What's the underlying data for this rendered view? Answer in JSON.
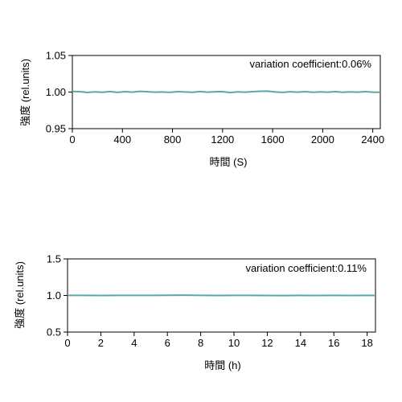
{
  "chart_data": [
    {
      "type": "line",
      "annotation": "variation coefficient:0.06%",
      "xlabel": "時間 (S)",
      "ylabel": "強度 (rel.units)",
      "xlim": [
        0,
        2460
      ],
      "ylim": [
        0.95,
        1.05
      ],
      "xticks": [
        0,
        400,
        800,
        1200,
        1600,
        2000,
        2400
      ],
      "yticks": [
        0.95,
        1.0,
        1.05
      ],
      "ytick_labels": [
        "0.95",
        "1.00",
        "1.05"
      ],
      "line_color": "#5aa8a6",
      "series": [
        {
          "x": [
            0,
            60,
            120,
            180,
            240,
            300,
            360,
            420,
            480,
            540,
            600,
            660,
            720,
            780,
            840,
            900,
            960,
            1020,
            1080,
            1140,
            1200,
            1260,
            1320,
            1380,
            1440,
            1500,
            1560,
            1620,
            1680,
            1740,
            1800,
            1860,
            1920,
            1980,
            2040,
            2100,
            2160,
            2220,
            2280,
            2340,
            2400,
            2460
          ],
          "values": [
            1.0008,
            1.0006,
            0.9995,
            1.0003,
            0.9997,
            1.0007,
            0.9996,
            1.0005,
            0.9998,
            1.0009,
            1.0004,
            0.9999,
            1.0002,
            0.9996,
            1.0005,
            1.0001,
            0.9997,
            1.0007,
            0.9998,
            1.0004,
            1.0006,
            0.9993,
            1.0003,
            0.9998,
            1.0005,
            1.0011,
            1.0013,
            1.0002,
            0.9996,
            1.0004,
            0.9998,
            1.0005,
            0.9997,
            1.0003,
            0.9999,
            1.0006,
            0.9997,
            1.0003,
            0.9998,
            1.0005,
            0.9999,
            0.9997
          ]
        }
      ]
    },
    {
      "type": "line",
      "annotation": "variation coefficient:0.11%",
      "xlabel": "時間 (h)",
      "ylabel": "強度 (rel.units)",
      "xlim": [
        0,
        18.5
      ],
      "ylim": [
        0.5,
        1.5
      ],
      "xticks": [
        0,
        2,
        4,
        6,
        8,
        10,
        12,
        14,
        16,
        18
      ],
      "yticks": [
        0.5,
        1.0,
        1.5
      ],
      "ytick_labels": [
        "0.5",
        "1.0",
        "1.5"
      ],
      "line_color": "#5aa8a6",
      "series": [
        {
          "x": [
            0,
            1,
            2,
            3,
            4,
            5,
            6,
            7,
            8,
            9,
            10,
            11,
            12,
            13,
            14,
            15,
            16,
            17,
            18,
            18.5
          ],
          "values": [
            1.002,
            1.001,
            1.0,
            1.001,
            1.002,
            1.001,
            1.003,
            1.004,
            1.001,
            1.0,
            1.002,
            1.001,
            1.0,
            0.999,
            1.001,
            1.0,
            1.001,
            1.0,
            1.001,
            1.0
          ]
        }
      ]
    }
  ]
}
